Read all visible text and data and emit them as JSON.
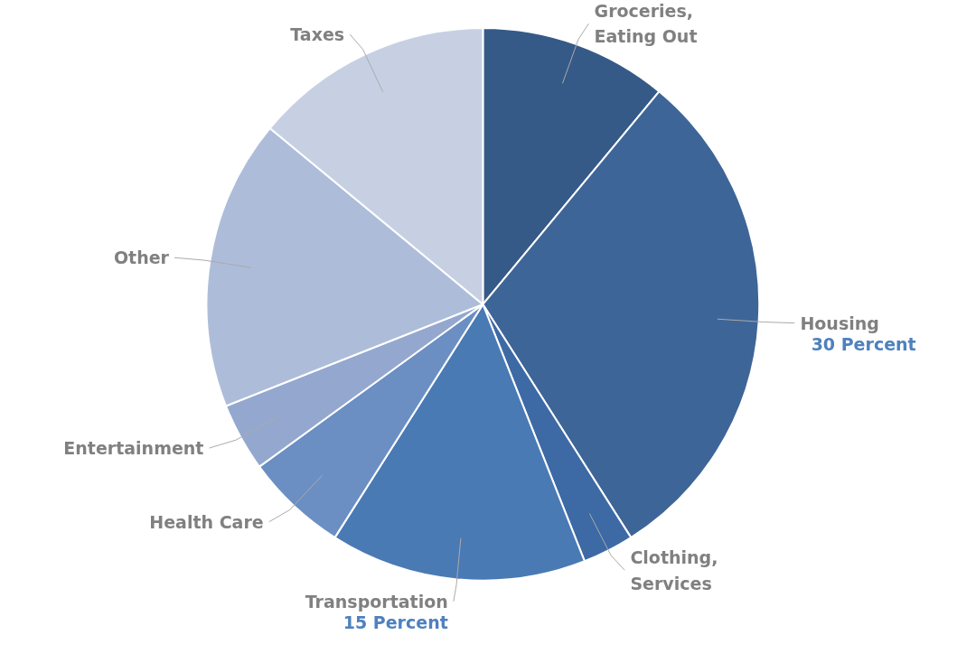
{
  "chart_data": {
    "type": "pie",
    "categories": [
      "Groceries,\nEating Out",
      "Housing",
      "Clothing,\nServices",
      "Transportation",
      "Health Care",
      "Entertainment",
      "Other",
      "Taxes"
    ],
    "values": [
      11,
      30,
      3,
      15,
      6,
      4,
      17,
      14
    ],
    "colors": [
      "#365a87",
      "#3e6597",
      "#3d6aa5",
      "#4a7ab4",
      "#6b8fc3",
      "#94a8cf",
      "#adbdd9",
      "#c7d0e3"
    ],
    "value_labels": [
      null,
      "30 Percent",
      null,
      "15 Percent",
      null,
      null,
      null,
      null
    ]
  }
}
